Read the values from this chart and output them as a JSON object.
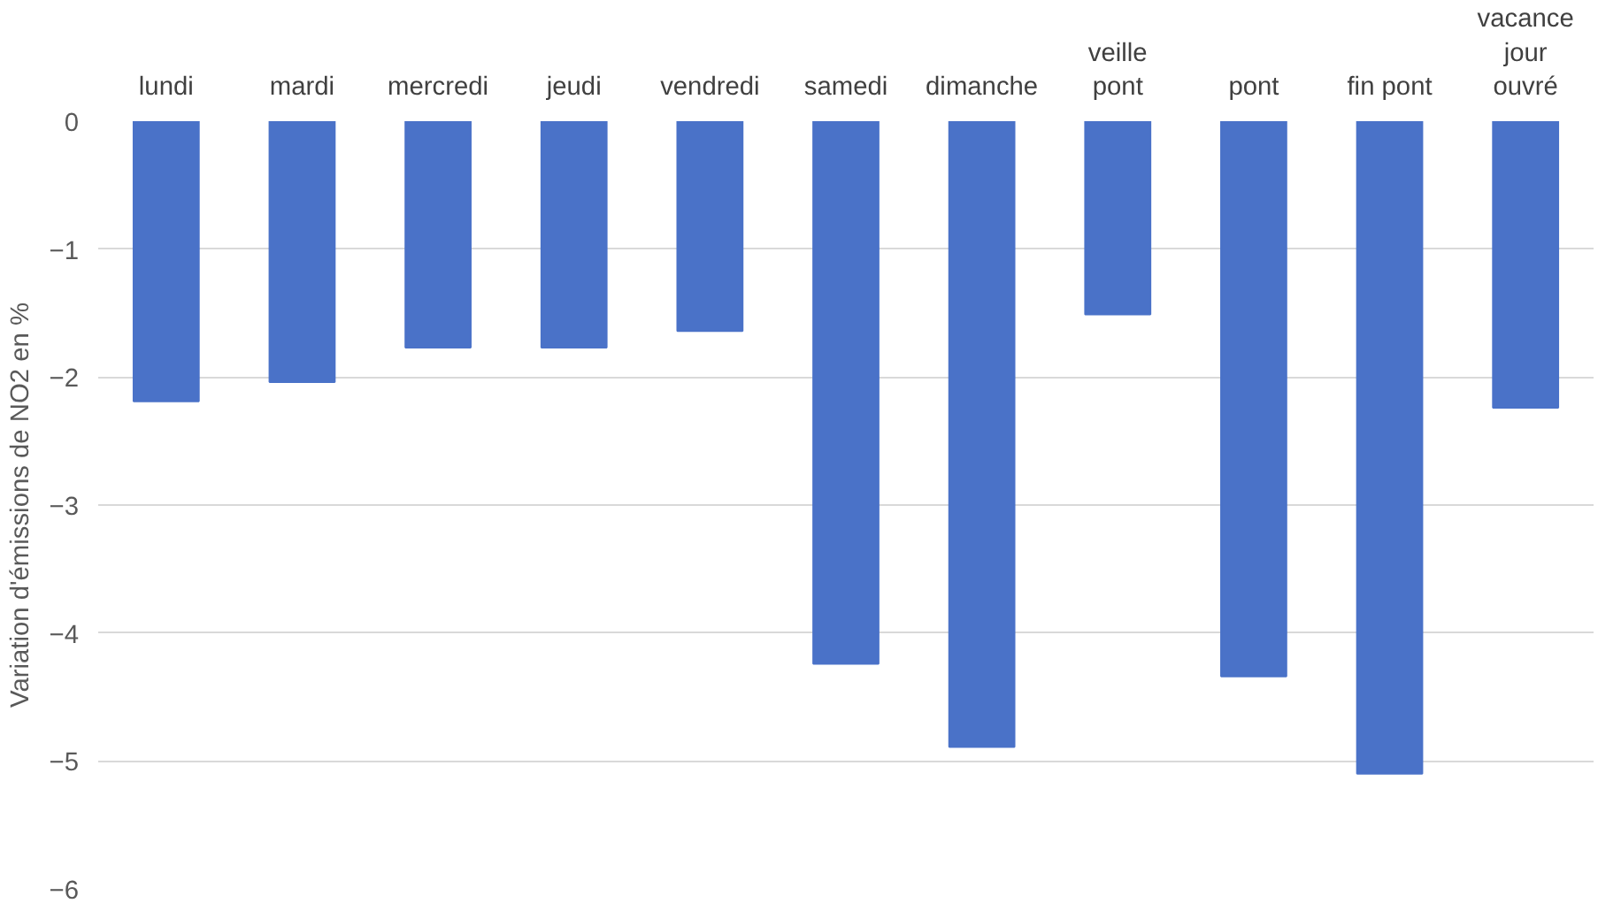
{
  "chart_data": {
    "type": "bar",
    "ylabel": "Variation d'émissions de NO2 en %",
    "categories": [
      "lundi",
      "mardi",
      "mercredi",
      "jeudi",
      "vendredi",
      "samedi",
      "dimanche",
      "veille\npont",
      "pont",
      "fin pont",
      "vacance\njour\nouvré"
    ],
    "values": [
      -2.19,
      -2.04,
      -1.77,
      -1.77,
      -1.64,
      -4.24,
      -4.89,
      -1.51,
      -4.34,
      -5.1,
      -2.24
    ],
    "color": "#4a72c8",
    "ylim": [
      -6,
      0
    ],
    "yticks": [
      -6,
      -5,
      -4,
      -3,
      -2,
      -1,
      0
    ],
    "grid": "y"
  }
}
